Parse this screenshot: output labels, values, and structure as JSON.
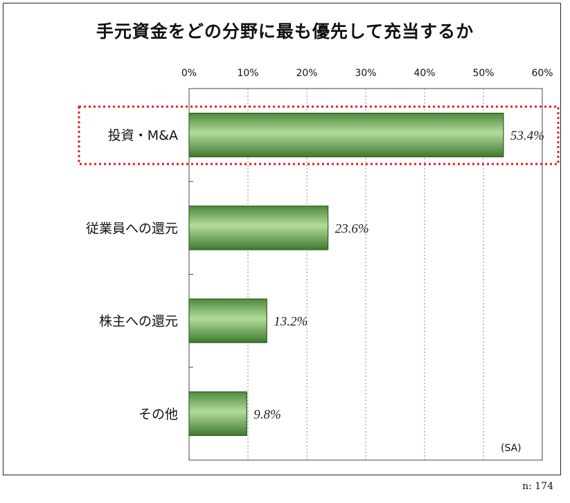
{
  "chart_data": {
    "type": "bar",
    "orientation": "horizontal",
    "title": "手元資金をどの分野に最も優先して充当するか",
    "categories": [
      "投資・M&A",
      "従業員への還元",
      "株主への還元",
      "その他"
    ],
    "values": [
      53.4,
      23.6,
      13.2,
      9.8
    ],
    "value_labels": [
      "53.4%",
      "23.6%",
      "13.2%",
      "9.8%"
    ],
    "unit": "%",
    "xlim": [
      0,
      60
    ],
    "x_ticks": [
      "0%",
      "10%",
      "20%",
      "30%",
      "40%",
      "50%",
      "60%"
    ],
    "grid": "vertical dotted",
    "highlighted_category": "投資・M&A",
    "bar_color": "#7fb56a",
    "bar_border": "#2f5a22",
    "highlight_color": "#e41a1c"
  },
  "sample_type": "(SA)",
  "n_label": "n: 174"
}
